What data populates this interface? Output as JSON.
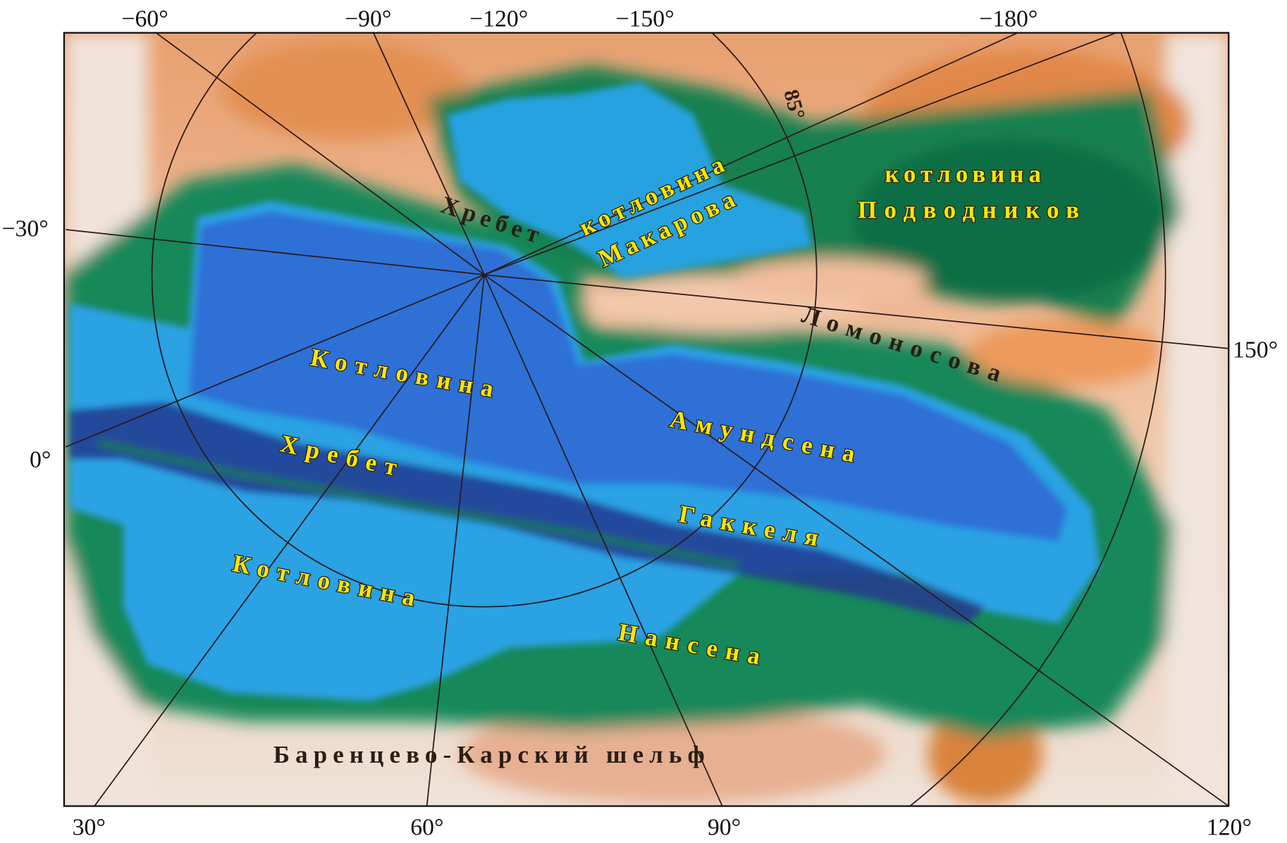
{
  "top_ticks": [
    "−60°",
    "−90°",
    "−120°",
    "−150°",
    "−180°"
  ],
  "bottom_ticks": [
    "30°",
    "60°",
    "90°",
    "120°"
  ],
  "left_ticks": [
    "−30°",
    "0°"
  ],
  "right_ticks": [
    "150°"
  ],
  "circle_label": "85°",
  "labels": {
    "lomonosov_ridge_1": "Хребет",
    "makarov_1": "котловина",
    "makarov_2": "Макарова",
    "podvodnikov_1": "котловина",
    "podvodnikov_2": "Подводников",
    "lomonosov_2": "Ломоносова",
    "amundsen_1": "Котловина",
    "amundsen_2": "Амундсена",
    "gakkel_1": "Хребет",
    "gakkel_2": "Гаккеля",
    "nansen_1": "Котловина",
    "nansen_2": "Нансена",
    "shelf": "Баренцево-Карский шельф"
  },
  "colors": {
    "shelf_light": "#efe2d8",
    "land_orange": "#e59a5e",
    "slope_green": "#17885a",
    "deep_green": "#0b6e44",
    "shallow_blue": "#29a6e4",
    "deep_blue": "#2d6fd6",
    "ridge": "#2a2a8a",
    "label_yellow": "#ffe600"
  }
}
